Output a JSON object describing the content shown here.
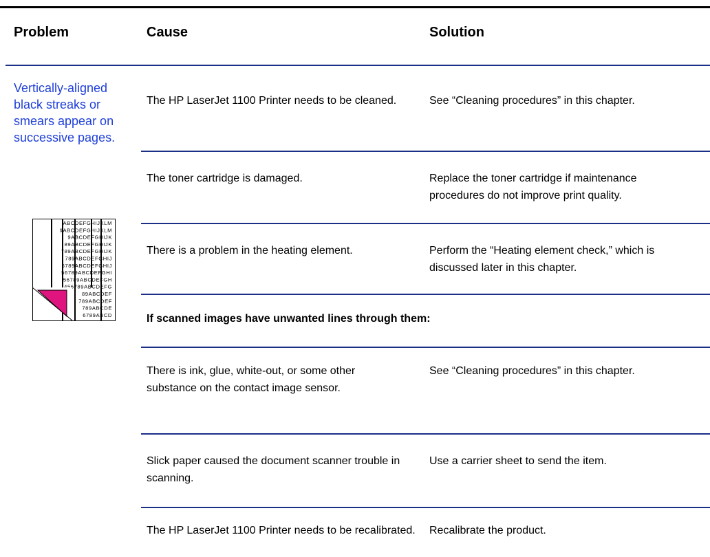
{
  "header": {
    "problem": "Problem",
    "cause": "Cause",
    "solution": "Solution"
  },
  "problem": "Vertically-aligned black streaks or smears appear on successive pages.",
  "illustration": {
    "lines": [
      "ABCDEFGHIJKLM",
      "9ABCDEFGHIJKLM",
      "9ABCDEFGHIJK",
      "89ABCDEFGHIJK",
      "789ABCDEFGHIJK",
      "789ABCDEFGHIJ",
      "6789ABCDEFGHIJ",
      "56789ABCDEFGHI",
      "56789ABCDEFGH",
      "456789ABCDEFG",
      "89ABCDEF",
      "789ABCDEF",
      "789ABCDE",
      "6789ABCD"
    ]
  },
  "rows": [
    {
      "cause": "The HP LaserJet 1100 Printer needs to be cleaned.",
      "solution": "See “Cleaning procedures” in this chapter."
    },
    {
      "cause": "The toner cartridge is damaged.",
      "solution": "Replace the toner cartridge if maintenance procedures do not improve print quality."
    },
    {
      "cause": "There is a problem in the heating element.",
      "solution": "Perform the “Heating element check,” which is discussed later in this chapter."
    }
  ],
  "section": "If scanned images have unwanted lines through them:",
  "scan_rows": [
    {
      "cause": "There is ink, glue, white-out, or some other substance on the contact image sensor.",
      "solution": "See “Cleaning procedures” in this chapter."
    },
    {
      "cause": "Slick paper caused the document scanner trouble in scanning.",
      "solution": "Use a carrier sheet to send the item."
    },
    {
      "cause": "The HP LaserJet 1100 Printer needs to be recalibrated.",
      "solution": "Recalibrate the product."
    }
  ]
}
